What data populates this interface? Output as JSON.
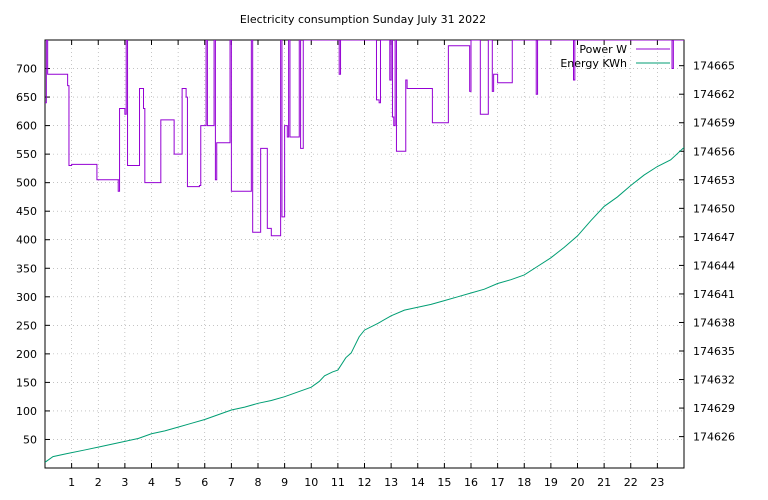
{
  "chart_data": {
    "type": "line",
    "title": "Electricity consumption Sunday July 31 2022",
    "xlabel": "",
    "ylabel": "",
    "y2label": "",
    "grid": true,
    "legend_position": "top-right",
    "x_ticks": [
      1,
      2,
      3,
      4,
      5,
      6,
      7,
      8,
      9,
      10,
      11,
      12,
      13,
      14,
      15,
      16,
      17,
      18,
      19,
      20,
      21,
      22,
      23
    ],
    "xlim": [
      0,
      24
    ],
    "y_ticks": [
      50,
      100,
      150,
      200,
      250,
      300,
      350,
      400,
      450,
      500,
      550,
      600,
      650,
      700
    ],
    "ylim": [
      0,
      750
    ],
    "y2_ticks": [
      174626,
      174629,
      174632,
      174635,
      174638,
      174641,
      174644,
      174647,
      174650,
      174653,
      174656,
      174659,
      174662,
      174665
    ],
    "y2lim": [
      174622.7,
      174667.7
    ],
    "series": [
      {
        "name": "Power W",
        "axis": "y1",
        "color": "#9400d3",
        "style": "step",
        "points": [
          [
            0.0,
            640
          ],
          [
            0.05,
            750
          ],
          [
            0.1,
            690
          ],
          [
            0.2,
            690
          ],
          [
            0.7,
            690
          ],
          [
            0.85,
            670
          ],
          [
            0.9,
            530
          ],
          [
            1.0,
            532
          ],
          [
            1.9,
            532
          ],
          [
            1.95,
            505
          ],
          [
            2.8,
            505
          ],
          [
            2.75,
            485
          ],
          [
            2.8,
            630
          ],
          [
            3.0,
            620
          ],
          [
            3.05,
            750
          ],
          [
            3.1,
            530
          ],
          [
            3.5,
            530
          ],
          [
            3.55,
            665
          ],
          [
            3.7,
            630
          ],
          [
            3.75,
            500
          ],
          [
            4.3,
            500
          ],
          [
            4.35,
            610
          ],
          [
            4.8,
            610
          ],
          [
            4.85,
            550
          ],
          [
            5.1,
            550
          ],
          [
            5.15,
            665
          ],
          [
            5.3,
            650
          ],
          [
            5.35,
            493
          ],
          [
            5.8,
            495
          ],
          [
            5.85,
            600
          ],
          [
            6.0,
            600
          ],
          [
            6.05,
            750
          ],
          [
            6.1,
            600
          ],
          [
            6.3,
            600
          ],
          [
            6.35,
            750
          ],
          [
            6.4,
            505
          ],
          [
            6.45,
            570
          ],
          [
            6.9,
            570
          ],
          [
            6.95,
            750
          ],
          [
            7.0,
            485
          ],
          [
            7.7,
            485
          ],
          [
            7.75,
            750
          ],
          [
            7.8,
            413
          ],
          [
            8.0,
            413
          ],
          [
            8.1,
            560
          ],
          [
            8.3,
            560
          ],
          [
            8.35,
            420
          ],
          [
            8.5,
            407
          ],
          [
            8.8,
            407
          ],
          [
            8.85,
            750
          ],
          [
            8.9,
            440
          ],
          [
            9.0,
            600
          ],
          [
            9.1,
            580
          ],
          [
            9.15,
            750
          ],
          [
            9.2,
            580
          ],
          [
            9.5,
            580
          ],
          [
            9.55,
            750
          ],
          [
            9.6,
            560
          ],
          [
            9.7,
            750
          ],
          [
            10.0,
            750
          ],
          [
            11.0,
            750
          ],
          [
            11.05,
            690
          ],
          [
            11.1,
            750
          ],
          [
            12.4,
            750
          ],
          [
            12.45,
            645
          ],
          [
            12.55,
            640
          ],
          [
            12.6,
            750
          ],
          [
            12.9,
            750
          ],
          [
            12.95,
            680
          ],
          [
            13.0,
            750
          ],
          [
            13.05,
            615
          ],
          [
            13.1,
            600
          ],
          [
            13.15,
            750
          ],
          [
            13.2,
            555
          ],
          [
            13.5,
            555
          ],
          [
            13.55,
            680
          ],
          [
            13.6,
            665
          ],
          [
            14.5,
            665
          ],
          [
            14.55,
            605
          ],
          [
            15.1,
            605
          ],
          [
            15.15,
            740
          ],
          [
            15.9,
            740
          ],
          [
            15.95,
            660
          ],
          [
            16.0,
            750
          ],
          [
            16.3,
            750
          ],
          [
            16.35,
            620
          ],
          [
            16.6,
            620
          ],
          [
            16.65,
            750
          ],
          [
            16.8,
            660
          ],
          [
            16.85,
            690
          ],
          [
            17.0,
            675
          ],
          [
            17.5,
            675
          ],
          [
            17.55,
            750
          ],
          [
            18.4,
            750
          ],
          [
            18.45,
            655
          ],
          [
            18.5,
            750
          ],
          [
            19.8,
            750
          ],
          [
            19.85,
            680
          ],
          [
            19.9,
            750
          ],
          [
            23.5,
            750
          ],
          [
            23.55,
            700
          ],
          [
            23.6,
            750
          ],
          [
            24.0,
            750
          ]
        ]
      },
      {
        "name": "Energy KWh",
        "axis": "y2",
        "color": "#009e73",
        "style": "line",
        "points": [
          [
            0.0,
            174623.3
          ],
          [
            0.3,
            174623.9
          ],
          [
            0.8,
            174624.2
          ],
          [
            1.5,
            174624.6
          ],
          [
            2.0,
            174624.9
          ],
          [
            3.0,
            174625.5
          ],
          [
            3.5,
            174625.8
          ],
          [
            4.0,
            174626.3
          ],
          [
            4.5,
            174626.6
          ],
          [
            5.0,
            174627.0
          ],
          [
            5.5,
            174627.4
          ],
          [
            6.0,
            174627.8
          ],
          [
            6.5,
            174628.3
          ],
          [
            7.0,
            174628.8
          ],
          [
            7.5,
            174629.1
          ],
          [
            8.0,
            174629.5
          ],
          [
            8.5,
            174629.8
          ],
          [
            9.0,
            174630.2
          ],
          [
            9.5,
            174630.7
          ],
          [
            10.0,
            174631.2
          ],
          [
            10.3,
            174631.8
          ],
          [
            10.5,
            174632.4
          ],
          [
            10.8,
            174632.8
          ],
          [
            11.0,
            174633.0
          ],
          [
            11.3,
            174634.3
          ],
          [
            11.5,
            174634.8
          ],
          [
            11.8,
            174636.5
          ],
          [
            12.0,
            174637.2
          ],
          [
            12.5,
            174637.9
          ],
          [
            13.0,
            174638.7
          ],
          [
            13.5,
            174639.3
          ],
          [
            14.0,
            174639.6
          ],
          [
            14.5,
            174639.9
          ],
          [
            15.0,
            174640.3
          ],
          [
            15.5,
            174640.7
          ],
          [
            16.0,
            174641.1
          ],
          [
            16.5,
            174641.5
          ],
          [
            17.0,
            174642.1
          ],
          [
            17.5,
            174642.5
          ],
          [
            18.0,
            174643.0
          ],
          [
            18.5,
            174643.9
          ],
          [
            19.0,
            174644.8
          ],
          [
            19.5,
            174645.9
          ],
          [
            20.0,
            174647.1
          ],
          [
            20.5,
            174648.7
          ],
          [
            21.0,
            174650.2
          ],
          [
            21.5,
            174651.2
          ],
          [
            22.0,
            174652.4
          ],
          [
            22.5,
            174653.5
          ],
          [
            23.0,
            174654.4
          ],
          [
            23.5,
            174655.1
          ],
          [
            24.0,
            174656.4
          ]
        ]
      }
    ]
  }
}
